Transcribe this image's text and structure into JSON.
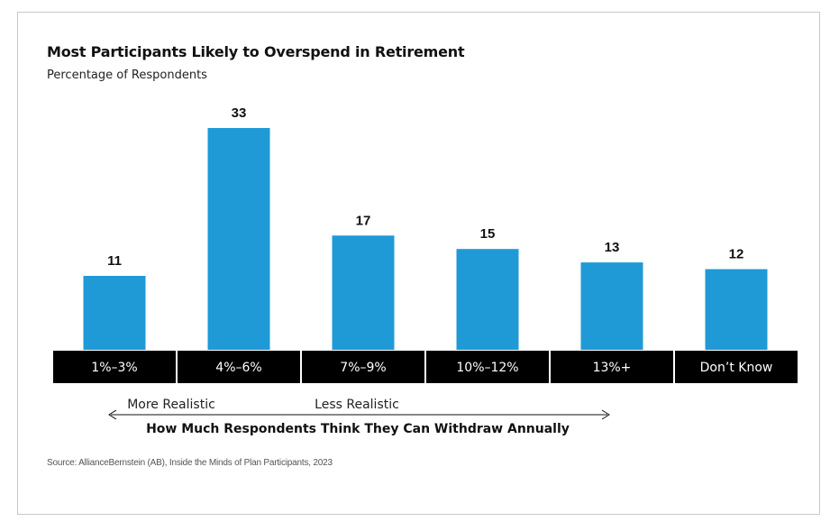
{
  "chart_data": {
    "type": "bar",
    "title": "Most Participants Likely to Overspend in Retirement",
    "subtitle": "Percentage of Respondents",
    "categories": [
      "1%–3%",
      "4%–6%",
      "7%–9%",
      "10%–12%",
      "13%+",
      "Don’t Know"
    ],
    "values": [
      11,
      33,
      17,
      15,
      13,
      12
    ],
    "xlabel": "How Much Respondents Think They Can Withdraw Annually",
    "ylabel": "",
    "ylim": [
      0,
      33
    ],
    "grid": false,
    "annotations": {
      "left": "More Realistic",
      "right": "Less Realistic"
    },
    "colors": {
      "bar": "#1f9ad6",
      "category_band": "#000000",
      "category_text": "#ffffff",
      "value_label": "#111111"
    }
  },
  "source": "Source: AllianceBernstein (AB), Inside the Minds of Plan Participants, 2023"
}
